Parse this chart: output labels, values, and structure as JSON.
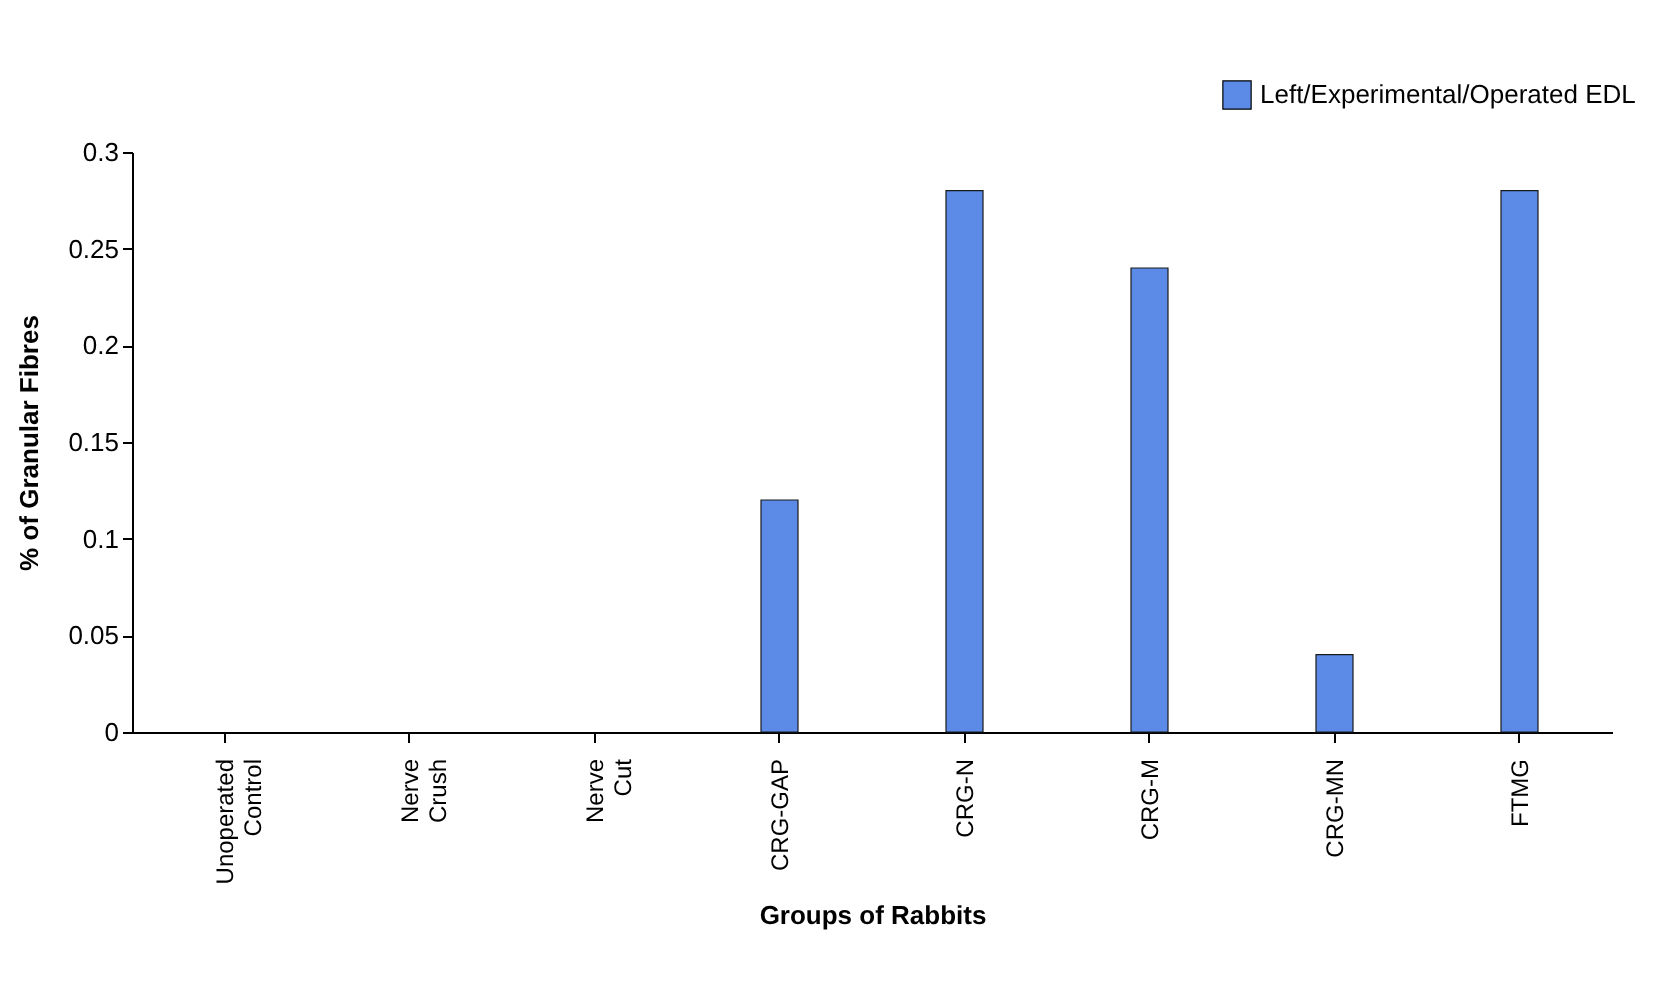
{
  "chart_data": {
    "type": "bar",
    "xlabel": "Groups of Rabbits",
    "ylabel": "% of Granular Fibres",
    "categories": [
      "Unoperated Control",
      "Nerve Crush",
      "Nerve Cut",
      "CRG-GAP",
      "CRG-N",
      "CRG-M",
      "CRG-MN",
      "FTMG"
    ],
    "series": [
      {
        "name": "Left/Experimental/Operated EDL",
        "color": "#5b8be6",
        "values": [
          0,
          0,
          0,
          0.12,
          0.28,
          0.24,
          0.04,
          0.28
        ]
      }
    ],
    "ylim": [
      0,
      0.3
    ],
    "yticks": [
      0,
      0.05,
      0.1,
      0.15,
      0.2,
      0.25,
      0.3
    ],
    "grid": false,
    "legend": "top right"
  }
}
